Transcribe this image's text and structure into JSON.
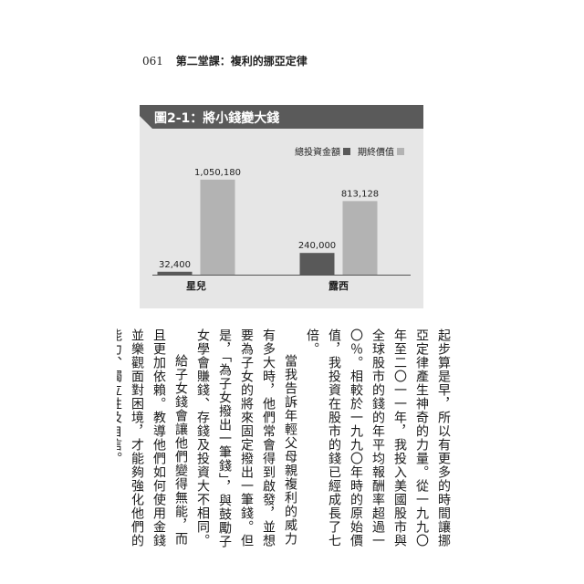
{
  "page": {
    "number": "061",
    "running_title": "第二堂課：複利的挪亞定律"
  },
  "figure": {
    "title": "圖2-1：將小錢變大錢",
    "colors": {
      "header": "#5a5a5a",
      "background": "#e6e6e6",
      "total": "#595959",
      "final": "#b3b3b3"
    }
  },
  "chart_data": {
    "type": "bar",
    "title": "圖2-1：將小錢變大錢",
    "categories": [
      "星兒",
      "露西"
    ],
    "series": [
      {
        "name": "總投資金額",
        "values": [
          32400,
          240000
        ]
      },
      {
        "name": "期終價值",
        "values": [
          1050180,
          813128
        ]
      }
    ],
    "data_labels": [
      [
        "32,400",
        "1,050,180"
      ],
      [
        "240,000",
        "813,128"
      ]
    ],
    "ylim": [
      0,
      1200000
    ],
    "legend": "top-right",
    "grid": false
  },
  "body": {
    "paragraphs": [
      {
        "text": "起步算是早，所以有更多的時間讓挪亞定律產生神奇的力量。從一九九〇年至二〇一一年，我投入美國股市與全球股市的錢的年平均報酬率超過一〇％。相較於一九九〇年時的原始價值，我投資在股市的錢已經成長了七倍。",
        "indent": false
      },
      {
        "text": "當我告訴年輕父母親複利的威力有多大時，他們常會得到啟發，並想要為子女的將來固定撥出一筆錢。但是，「為子女撥出一筆錢」，與鼓勵子女學會賺錢、存錢及投資大不相同。",
        "indent": true
      },
      {
        "text": "給子女錢會讓他們變得無能，而且更加依賴。教導他們如何使用金錢並樂觀面對困境，才能夠強化他們的能力、獨立性及自信。",
        "indent": true
      }
    ]
  }
}
